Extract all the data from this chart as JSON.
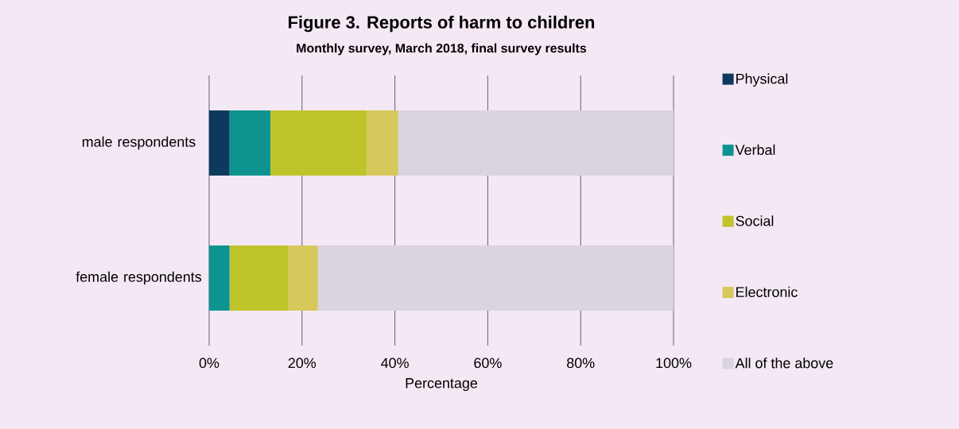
{
  "chart_data": {
    "type": "bar",
    "orientation": "horizontal",
    "stacked": true,
    "title": "Figure 3. Reports of harm to children",
    "subtitle": "Monthly survey, March 2018, final survey results",
    "xlabel": "Percentage",
    "categories": [
      "male respondents",
      "female respondents"
    ],
    "series": [
      {
        "name": "Physical",
        "color": "#0d3a5c",
        "values": [
          4.4,
          0
        ]
      },
      {
        "name": "Verbal",
        "color": "#0e9490",
        "values": [
          8.8,
          4.4
        ]
      },
      {
        "name": "Social",
        "color": "#bfc42a",
        "values": [
          20.8,
          12.6
        ]
      },
      {
        "name": "Electronic",
        "color": "#d6c85a",
        "values": [
          6.7,
          6.4
        ]
      },
      {
        "name": "All of the above",
        "color": "#dad3e0",
        "values": [
          59.3,
          76.6
        ]
      }
    ],
    "xlim": [
      0,
      100
    ],
    "xticks": [
      {
        "value": 0,
        "label": "0%"
      },
      {
        "value": 20,
        "label": "20%"
      },
      {
        "value": 40,
        "label": "40%"
      },
      {
        "value": 60,
        "label": "60%"
      },
      {
        "value": 80,
        "label": "80%"
      },
      {
        "value": 100,
        "label": "100%"
      }
    ],
    "grid": "x",
    "legend": "right"
  }
}
